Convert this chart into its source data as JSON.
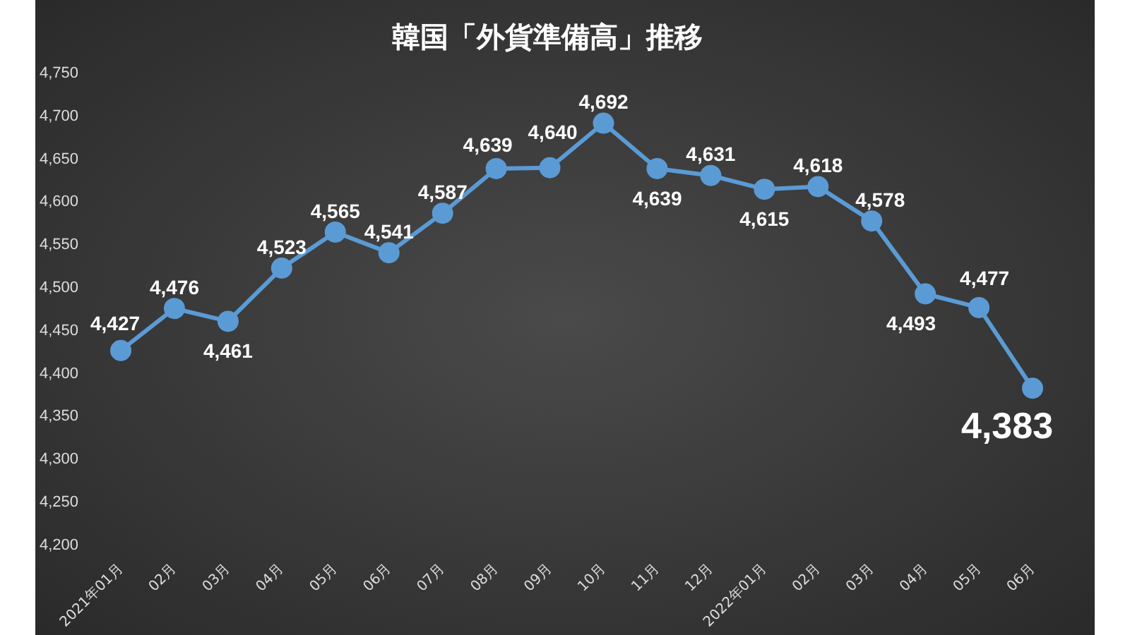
{
  "chart_data": {
    "type": "line",
    "title": "韓国「外貨準備高」推移",
    "categories": [
      "2021年01月",
      "02月",
      "03月",
      "04月",
      "05月",
      "06月",
      "07月",
      "08月",
      "09月",
      "10月",
      "11月",
      "12月",
      "2022年01月",
      "02月",
      "03月",
      "04月",
      "05月",
      "06月"
    ],
    "series": [
      {
        "color": "#5b9bd5",
        "values": [
          4427,
          4476,
          4461,
          4523,
          4565,
          4541,
          4587,
          4639,
          4640,
          4692,
          4639,
          4631,
          4615,
          4618,
          4578,
          4493,
          4477,
          4383
        ],
        "value_labels": [
          "4,427",
          "4,476",
          "4,461",
          "4,523",
          "4,565",
          "4,541",
          "4,587",
          "4,639",
          "4,640",
          "4,692",
          "4,639",
          "4,631",
          "4,615",
          "4,618",
          "4,578",
          "4,493",
          "4,477",
          "4,383"
        ]
      }
    ],
    "ylim": [
      4200,
      4750
    ],
    "yticks": [
      {
        "value": 4200,
        "label": "4,200"
      },
      {
        "value": 4250,
        "label": "4,250"
      },
      {
        "value": 4300,
        "label": "4,300"
      },
      {
        "value": 4350,
        "label": "4,350"
      },
      {
        "value": 4400,
        "label": "4,400"
      },
      {
        "value": 4450,
        "label": "4,450"
      },
      {
        "value": 4500,
        "label": "4,500"
      },
      {
        "value": 4550,
        "label": "4,550"
      },
      {
        "value": 4600,
        "label": "4,600"
      },
      {
        "value": 4650,
        "label": "4,650"
      },
      {
        "value": 4700,
        "label": "4,700"
      },
      {
        "value": 4750,
        "label": "4,750"
      }
    ],
    "grid": false,
    "legend": false,
    "marker": "circle",
    "line_style": "solid"
  }
}
